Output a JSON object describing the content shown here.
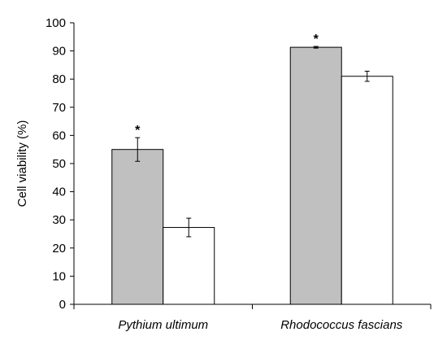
{
  "chart_data": {
    "type": "bar",
    "title": "",
    "xlabel": "",
    "ylabel": "Cell viability (%)",
    "ylim": [
      0,
      100
    ],
    "yticks": [
      0,
      10,
      20,
      30,
      40,
      50,
      60,
      70,
      80,
      90,
      100
    ],
    "categories": [
      "Pythium ultimum",
      "Rhodococcus fascians"
    ],
    "series": [
      {
        "color": "#c0c0c0",
        "values": [
          55,
          91.3
        ],
        "errors": [
          4.2,
          0.3
        ],
        "annotations": [
          "*",
          "*"
        ]
      },
      {
        "color": "#ffffff",
        "values": [
          27.3,
          81
        ],
        "errors": [
          3.3,
          1.8
        ],
        "annotations": [
          "",
          ""
        ]
      }
    ],
    "grid": false,
    "legend": "none"
  }
}
